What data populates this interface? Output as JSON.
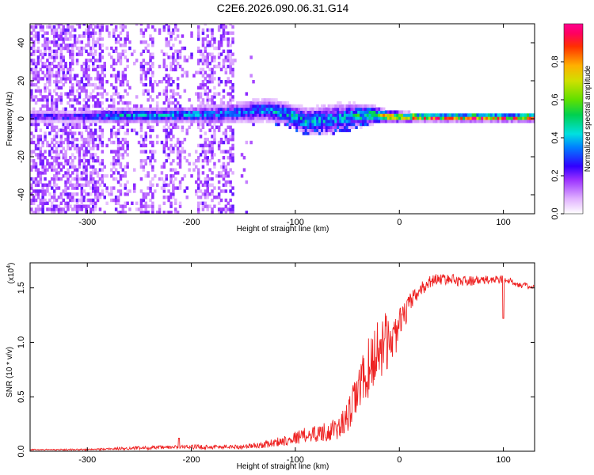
{
  "title": "C2E6.2026.090.06.31.G14",
  "chart_data": [
    {
      "type": "heatmap",
      "title": "C2E6.2026.090.06.31.G14",
      "xlabel": "Height of straight line (km)",
      "ylabel": "Frequency (Hz)",
      "xlim": [
        -355,
        130
      ],
      "ylim": [
        -50,
        50
      ],
      "xticks": [
        -300,
        -200,
        -100,
        0,
        100
      ],
      "yticks": [
        -40,
        -20,
        0,
        20,
        40
      ],
      "ytick_labels": [
        "-40",
        "-20",
        "0",
        "20",
        "40"
      ],
      "xtick_labels": [
        "-300",
        "-200",
        "-100",
        "0",
        "100"
      ],
      "colorbar": {
        "label": "Normalized spectral amplitude",
        "range": [
          0.0,
          1.0
        ],
        "ticks": [
          0.0,
          0.2,
          0.4,
          0.6,
          0.8
        ],
        "tick_labels": [
          "0.0",
          "0.2",
          "0.4",
          "0.6",
          "0.8"
        ]
      },
      "signal_band": [
        {
          "x": -305,
          "center": 0.5,
          "halfwidth": 1.5,
          "amp": 0.3
        },
        {
          "x": -270,
          "center": 1.0,
          "halfwidth": 2.0,
          "amp": 0.45
        },
        {
          "x": -240,
          "center": 1.0,
          "halfwidth": 2.0,
          "amp": 0.4
        },
        {
          "x": -210,
          "center": 1.5,
          "halfwidth": 2.0,
          "amp": 0.42
        },
        {
          "x": -180,
          "center": 1.5,
          "halfwidth": 2.5,
          "amp": 0.38
        },
        {
          "x": -150,
          "center": 3.0,
          "halfwidth": 3.0,
          "amp": 0.35
        },
        {
          "x": -130,
          "center": 4.0,
          "halfwidth": 3.0,
          "amp": 0.4
        },
        {
          "x": -110,
          "center": 2.0,
          "halfwidth": 3.0,
          "amp": 0.45
        },
        {
          "x": -90,
          "center": -2.0,
          "halfwidth": 3.5,
          "amp": 0.45
        },
        {
          "x": -70,
          "center": -1.0,
          "halfwidth": 4.0,
          "amp": 0.4
        },
        {
          "x": -50,
          "center": 0.5,
          "halfwidth": 3.5,
          "amp": 0.45
        },
        {
          "x": -30,
          "center": 1.5,
          "halfwidth": 2.5,
          "amp": 0.6
        },
        {
          "x": -10,
          "center": 0.5,
          "halfwidth": 1.5,
          "amp": 0.85
        },
        {
          "x": 20,
          "center": 0.0,
          "halfwidth": 1.0,
          "amp": 0.95
        },
        {
          "x": 60,
          "center": 0.0,
          "halfwidth": 1.0,
          "amp": 1.0
        },
        {
          "x": 130,
          "center": 0.0,
          "halfwidth": 1.0,
          "amp": 1.0
        }
      ]
    },
    {
      "type": "line",
      "xlabel": "Height of straight line (km)",
      "ylabel": "SNR (10 * v/v)",
      "y_multiplier_label": "(x10",
      "y_multiplier_exp": "4",
      "y_multiplier_close": ")",
      "xlim": [
        -355,
        130
      ],
      "ylim": [
        0.0,
        1.73
      ],
      "xticks": [
        -300,
        -200,
        -100,
        0,
        100
      ],
      "xtick_labels": [
        "-300",
        "-200",
        "-100",
        "0",
        "100"
      ],
      "yticks": [
        0.0,
        0.5,
        1.0,
        1.5
      ],
      "ytick_labels": [
        "0.0",
        "0.5",
        "1.0",
        "1.5"
      ],
      "series": [
        {
          "name": "SNR",
          "color": "#ee2222",
          "x": [
            -355,
            -300,
            -250,
            -200,
            -170,
            -150,
            -130,
            -110,
            -90,
            -70,
            -60,
            -50,
            -45,
            -40,
            -35,
            -30,
            -25,
            -20,
            -15,
            -10,
            -5,
            0,
            5,
            10,
            15,
            20,
            25,
            30,
            35,
            40,
            50,
            60,
            80,
            100,
            110,
            120,
            130
          ],
          "y": [
            0.015,
            0.015,
            0.03,
            0.04,
            0.04,
            0.04,
            0.06,
            0.1,
            0.15,
            0.18,
            0.2,
            0.3,
            0.42,
            0.55,
            0.65,
            0.75,
            0.85,
            0.95,
            1.0,
            1.0,
            1.05,
            1.15,
            1.25,
            1.35,
            1.42,
            1.48,
            1.52,
            1.56,
            1.58,
            1.58,
            1.58,
            1.56,
            1.57,
            1.58,
            1.55,
            1.52,
            1.5
          ],
          "noise": [
            0.005,
            0.008,
            0.015,
            0.02,
            0.02,
            0.02,
            0.03,
            0.05,
            0.07,
            0.09,
            0.1,
            0.14,
            0.18,
            0.22,
            0.25,
            0.28,
            0.3,
            0.3,
            0.28,
            0.25,
            0.2,
            0.16,
            0.12,
            0.1,
            0.08,
            0.07,
            0.06,
            0.06,
            0.05,
            0.05,
            0.05,
            0.05,
            0.04,
            0.04,
            0.03,
            0.03,
            0.02
          ]
        }
      ]
    }
  ]
}
